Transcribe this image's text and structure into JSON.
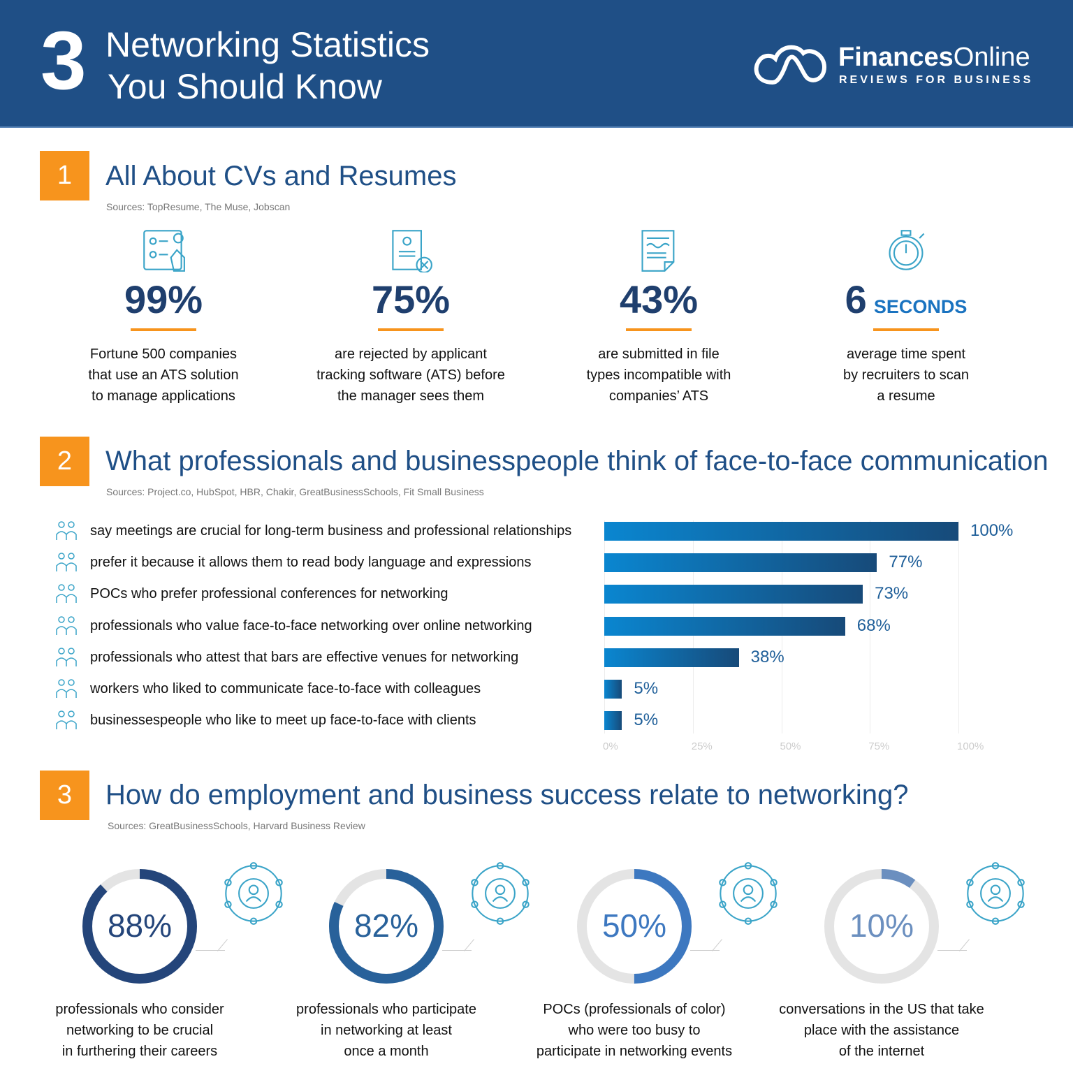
{
  "header": {
    "number": "3",
    "title_line1": "Networking Statistics",
    "title_line2": "You Should Know",
    "logo_bold": "Finances",
    "logo_light": "Online",
    "logo_tagline": "REVIEWS FOR BUSINESS"
  },
  "section1": {
    "number": "1",
    "title": "All About CVs and Resumes",
    "sources": "Sources: TopResume, The Muse, Jobscan",
    "stats": [
      {
        "value": "99%",
        "unit": "",
        "desc": [
          "Fortune 500 companies",
          "that use an ATS solution",
          "to manage applications"
        ],
        "icon": "ats-screen-icon"
      },
      {
        "value": "75%",
        "unit": "",
        "desc": [
          "are rejected by applicant",
          "tracking software (ATS) before",
          "the manager sees them"
        ],
        "icon": "rejected-resume-icon"
      },
      {
        "value": "43%",
        "unit": "",
        "desc": [
          "are submitted in file",
          "types incompatible with",
          "companies’ ATS"
        ],
        "icon": "document-icon"
      },
      {
        "value": "6",
        "unit": "SECONDS",
        "desc": [
          "average time spent",
          "by recruiters to scan",
          "a resume"
        ],
        "icon": "stopwatch-icon"
      }
    ]
  },
  "section2": {
    "number": "2",
    "title": "What professionals and businesspeople think of face-to-face communication",
    "sources": "Sources: Project.co, HubSpot, HBR, Chakir, GreatBusinessSchools, Fit Small Business"
  },
  "section3": {
    "number": "3",
    "title": "How do employment and business success relate to networking?",
    "sources": "Sources: GreatBusinessSchools, Harvard Business Review"
  },
  "chart_data": [
    {
      "type": "bar",
      "orientation": "horizontal",
      "categories": [
        "say meetings are crucial for long-term business and professional relationships",
        "prefer it because it allows them to read body language and expressions",
        "POCs who prefer professional conferences for networking",
        "professionals who value face-to-face networking over online networking",
        "professionals who attest that bars are effective venues for networking",
        "workers who liked to communicate face-to-face with colleagues",
        "businessespeople who like to meet up face-to-face with clients"
      ],
      "values": [
        100,
        77,
        73,
        68,
        38,
        5,
        5
      ],
      "data_labels": [
        "100%",
        "77%",
        "73%",
        "68%",
        "38%",
        "5%",
        "5%"
      ],
      "xlim": [
        0,
        100
      ],
      "x_ticks": [
        "0%",
        "25%",
        "50%",
        "75%",
        "100%"
      ],
      "grid": true,
      "icons": [
        "meeting-icon",
        "body-language-icon",
        "conference-icon",
        "handshake-icon",
        "bar-drink-icon",
        "colleagues-icon",
        "clients-meeting-icon"
      ],
      "colors": {
        "bar_start": "#0a86d0",
        "bar_end": "#174a79",
        "label": "#1f5f99"
      }
    },
    {
      "type": "donut",
      "values": [
        88,
        82,
        50,
        10
      ],
      "labels": [
        "88%",
        "82%",
        "50%",
        "10%"
      ],
      "descriptions": [
        [
          "professionals who consider",
          "networking to be crucial",
          "in furthering their careers"
        ],
        [
          "professionals who participate",
          "in networking at least",
          "once a month"
        ],
        [
          "POCs (professionals of color)",
          "who were too busy to",
          "participate in networking events"
        ],
        [
          "conversations in the US that take",
          "place with the assistance",
          "of the internet"
        ]
      ],
      "colors": [
        "#24457a",
        "#28619a",
        "#3d78c0",
        "#6b8fbf"
      ],
      "track_color": "#e4e4e4",
      "icons": [
        "network-person-icon",
        "professional-calendar-icon",
        "clock-businessman-icon",
        "video-call-icon"
      ]
    }
  ]
}
